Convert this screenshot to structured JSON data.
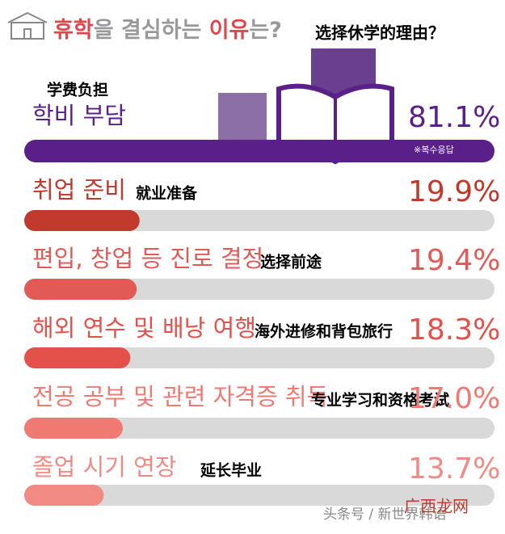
{
  "chart_data": {
    "type": "bar",
    "title_parts": [
      "휴학",
      "을 결심하는 ",
      "이유",
      "는?"
    ],
    "title_translation": "选择休学的理由？",
    "categories": [
      "학비 부담",
      "취업 준비",
      "편입, 창업 등 진로 결정",
      "해외 연수 및 배낭 여행",
      "전공 공부 및 관련 자격증 취득",
      "졸업 시기 연장"
    ],
    "category_translations": [
      "学费负担",
      "就业准备",
      "选择前途",
      "海外进修和背包旅行",
      "专业学习和资格考试",
      "延长毕业"
    ],
    "values": [
      81.1,
      19.9,
      19.4,
      18.3,
      17.0,
      13.7
    ],
    "value_labels": [
      "81.1%",
      "19.9%",
      "19.4%",
      "18.3%",
      "17.0%",
      "13.7%"
    ],
    "colors": [
      "#5b1f8a",
      "#c0392b",
      "#e25a55",
      "#e4504a",
      "#f07a72",
      "#f28a84"
    ],
    "note": "※복수응답",
    "watermark": "头条号 / 新世界韩语",
    "watermark2": "广西龙网"
  }
}
